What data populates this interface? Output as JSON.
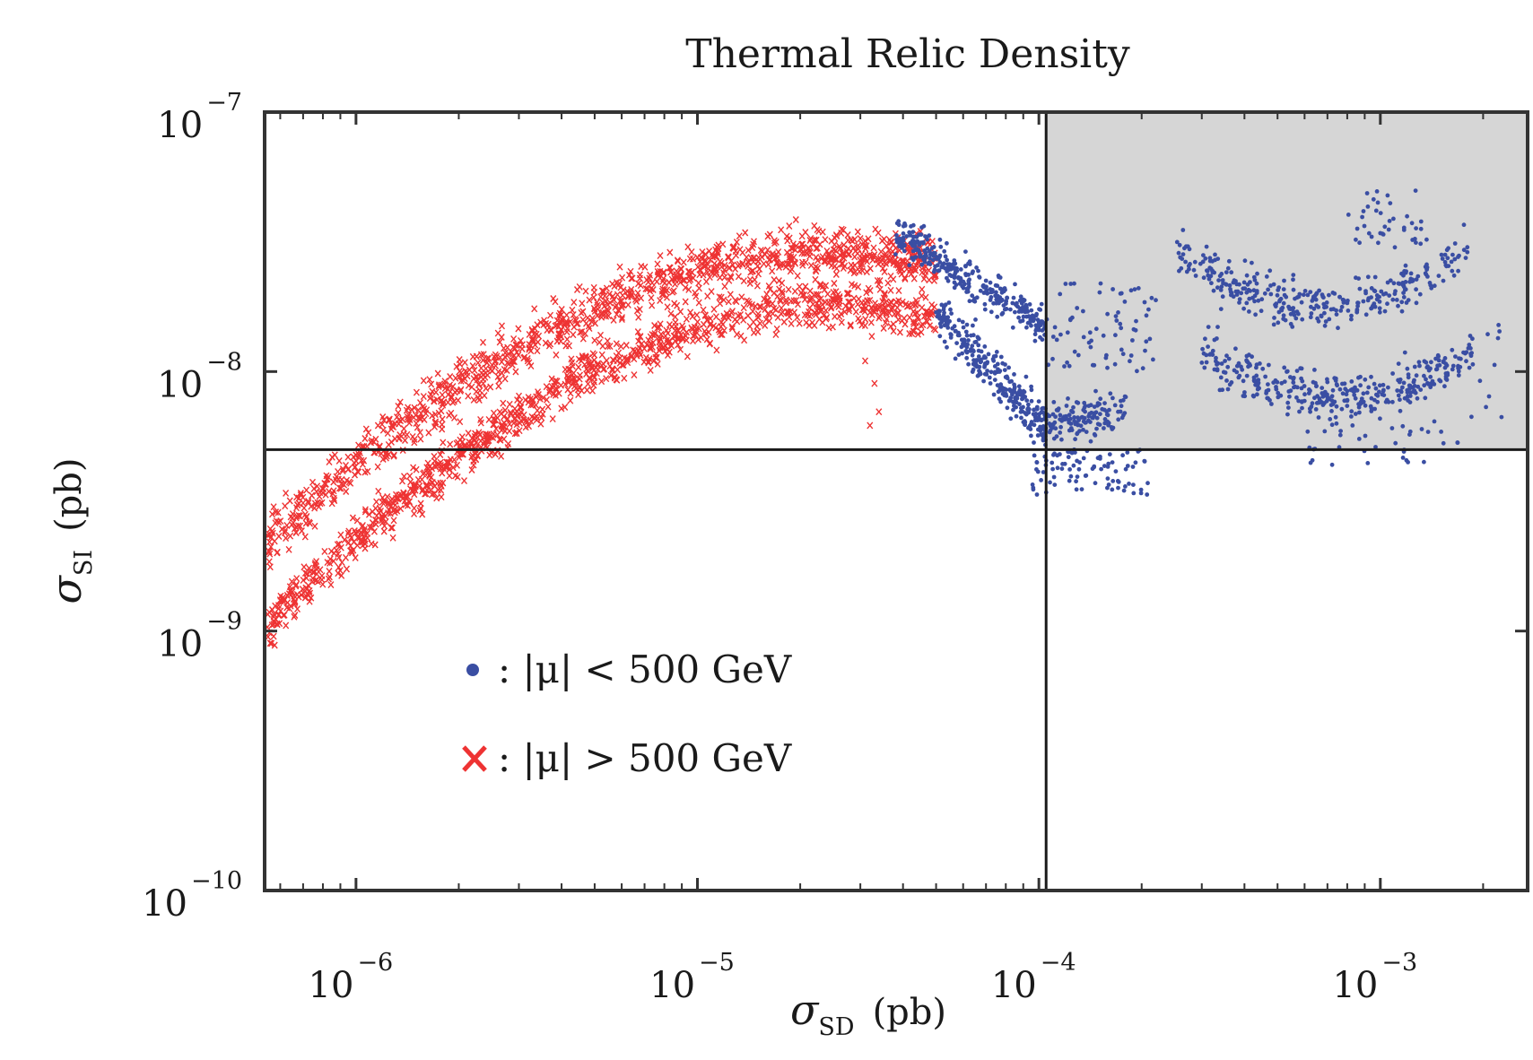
{
  "chart_data": {
    "type": "scatter",
    "title": "Thermal Relic Density",
    "xlabel": {
      "symbol": "σ",
      "sub": "SD",
      "unit": "(pb)"
    },
    "ylabel": {
      "symbol": "σ",
      "sub": "SI",
      "unit": "(pb)"
    },
    "xscale": "log",
    "yscale": "log",
    "xlim": [
      5.4e-07,
      0.0027
    ],
    "ylim": [
      1e-10,
      1e-07
    ],
    "x_ticks": [
      {
        "value": 1e-06,
        "base": "10",
        "exp": "−6"
      },
      {
        "value": 1e-05,
        "base": "10",
        "exp": "−5"
      },
      {
        "value": 0.0001,
        "base": "10",
        "exp": "−4"
      },
      {
        "value": 0.001,
        "base": "10",
        "exp": "−3"
      }
    ],
    "y_ticks": [
      {
        "value": 1e-10,
        "base": "10",
        "exp": "−10"
      },
      {
        "value": 1e-09,
        "base": "10",
        "exp": "−9"
      },
      {
        "value": 1e-08,
        "base": "10",
        "exp": "−8"
      },
      {
        "value": 1e-07,
        "base": "10",
        "exp": "−7"
      }
    ],
    "reference_lines": {
      "sigma_sd": 0.000105,
      "sigma_si": 5e-09
    },
    "shaded_region": {
      "x_min": 0.000105,
      "y_min": 5e-09,
      "color": "#d6d6d6"
    },
    "legend": {
      "placement": "center-left",
      "items": [
        {
          "marker": "dot",
          "color": "#3a4ea3",
          "text": ": |μ| < 500 GeV"
        },
        {
          "marker": "x",
          "color": "#ee3333",
          "text": ": |μ| > 500 GeV"
        }
      ]
    },
    "series": [
      {
        "name": "|μ| > 500 GeV",
        "marker": "x",
        "color": "#ee3333",
        "bands": [
          {
            "x_from": 5.5e-07,
            "x_to": 5e-05,
            "y_start": 2.2e-09,
            "y_peak": 3e-08,
            "x_peak": 2.5e-05,
            "log_spread": 0.09,
            "count": 1100
          },
          {
            "x_from": 5.5e-07,
            "x_to": 5e-05,
            "y_start": 1.05e-09,
            "y_peak": 1.85e-08,
            "x_peak": 2.5e-05,
            "log_spread": 0.08,
            "count": 1100
          }
        ],
        "extra_points": [
          [
            3.2e-05,
            6.2e-09
          ],
          [
            3.4e-05,
            7e-09
          ],
          [
            3.1e-05,
            1.1e-08
          ],
          [
            3.3e-05,
            9e-09
          ]
        ]
      },
      {
        "name": "|μ| < 500 GeV",
        "marker": "dot",
        "color": "#3a4ea3",
        "clusters": [
          {
            "kind": "band",
            "x_from": 3.8e-05,
            "x_to": 0.000105,
            "y_from": 3.4e-08,
            "y_to": 1.5e-08,
            "log_spread": 0.07,
            "count": 330
          },
          {
            "kind": "band",
            "x_from": 5e-05,
            "x_to": 0.000105,
            "y_from": 1.7e-08,
            "y_to": 6e-09,
            "log_spread": 0.08,
            "count": 280
          },
          {
            "kind": "band",
            "x_from": 0.0001,
            "x_to": 0.00018,
            "y_from": 6.3e-09,
            "y_to": 7.2e-09,
            "log_spread": 0.07,
            "count": 140
          },
          {
            "kind": "cloud",
            "x_from": 9.5e-05,
            "x_to": 0.00021,
            "y_from": 3.3e-09,
            "y_to": 5e-09,
            "count": 90
          },
          {
            "kind": "cloud",
            "x_from": 0.000105,
            "x_to": 0.00022,
            "y_from": 1e-08,
            "y_to": 2.2e-08,
            "count": 70
          },
          {
            "kind": "arc",
            "x_from": 0.00025,
            "x_to": 0.0018,
            "x_min": 0.0007,
            "y_edge": 3e-08,
            "y_min": 1.8e-08,
            "log_spread": 0.08,
            "count": 330
          },
          {
            "kind": "cloud",
            "x_from": 0.0008,
            "x_to": 0.0014,
            "y_from": 3e-08,
            "y_to": 5e-08,
            "count": 40
          },
          {
            "kind": "arc",
            "x_from": 0.0003,
            "x_to": 0.0019,
            "x_min": 0.0008,
            "y_edge": 1.2e-08,
            "y_min": 8e-09,
            "log_spread": 0.08,
            "count": 360
          },
          {
            "kind": "cloud",
            "x_from": 0.0006,
            "x_to": 0.0017,
            "y_from": 4.2e-09,
            "y_to": 6.5e-09,
            "count": 35
          },
          {
            "kind": "cloud",
            "x_from": 0.0018,
            "x_to": 0.0023,
            "y_from": 6.5e-09,
            "y_to": 1.6e-08,
            "count": 12
          }
        ]
      }
    ]
  }
}
